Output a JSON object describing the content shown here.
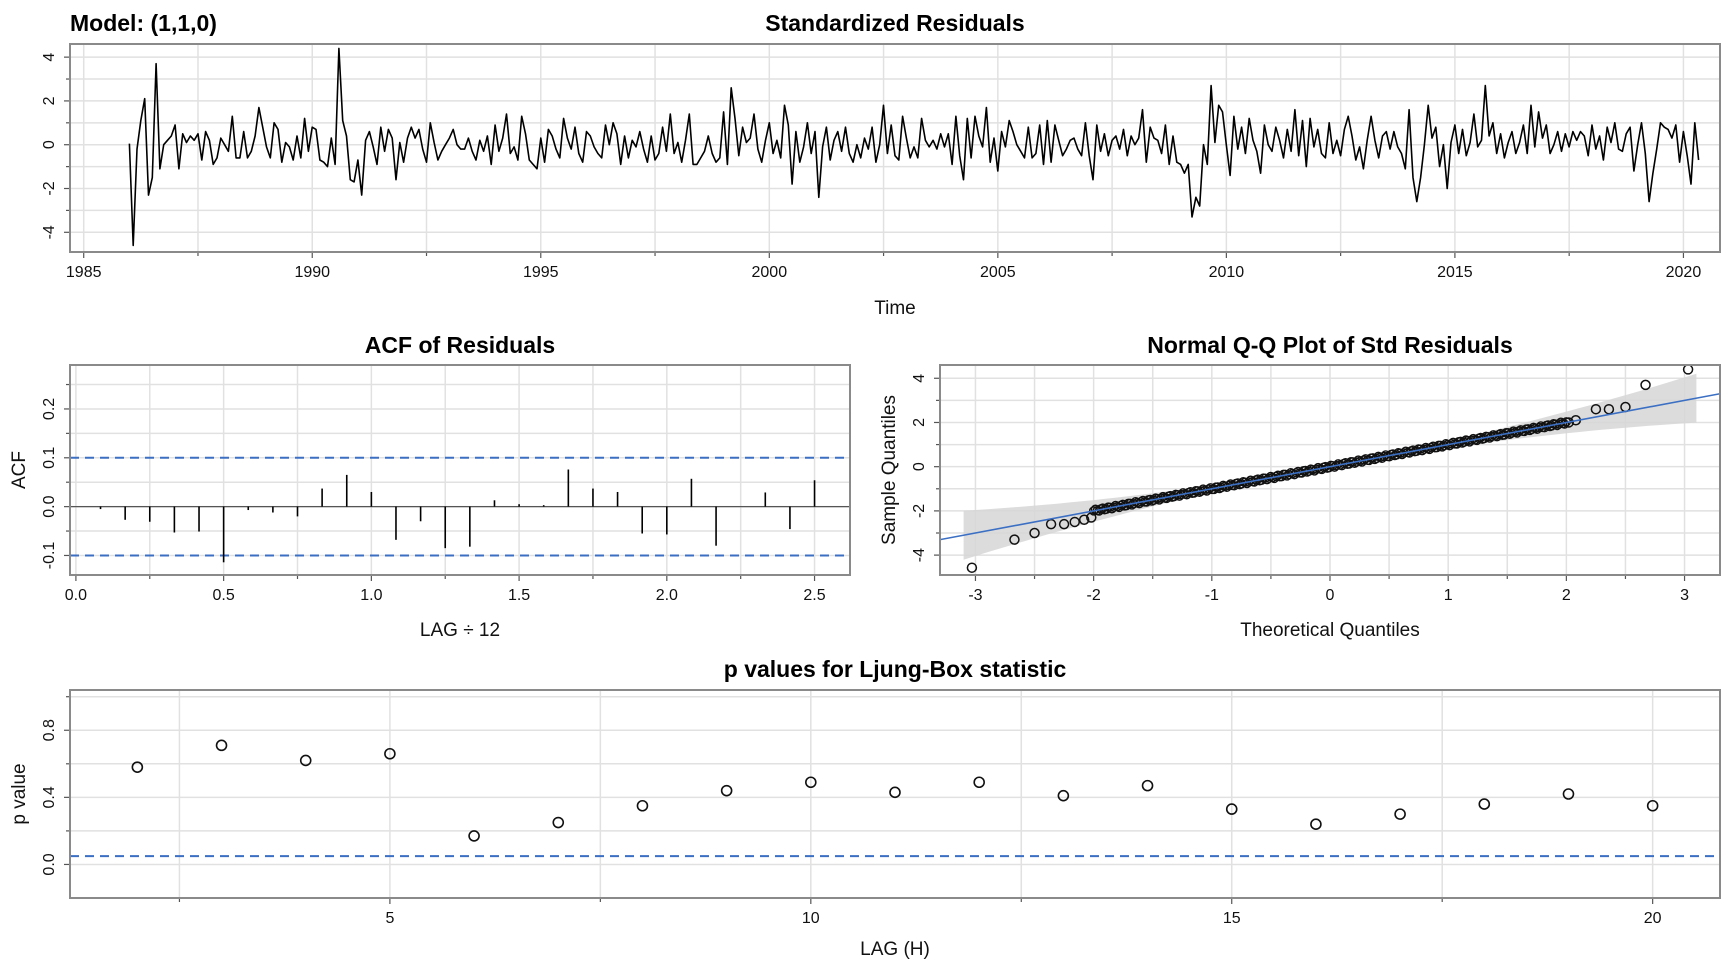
{
  "model_label": "Model: (1,1,0)",
  "chart_data": [
    {
      "type": "line",
      "title": "Standardized Residuals",
      "xlabel": "Time",
      "ylabel": "",
      "xlim": [
        1984.7,
        2020.8
      ],
      "ylim": [
        -4.9,
        4.6
      ],
      "xticks": [
        1985,
        1990,
        1995,
        2000,
        2005,
        2010,
        2015,
        2020
      ],
      "yticks": [
        -4,
        -2,
        0,
        2,
        4
      ],
      "grid": true,
      "x_start": 1986.0,
      "x_step": 0.08333,
      "series": [
        {
          "values": [
            0.05,
            -4.6,
            -0.2,
            1.1,
            2.1,
            -2.3,
            -1.5,
            3.7,
            -1.1,
            0.0,
            0.2,
            0.4,
            0.9,
            -1.1,
            0.5,
            0.1,
            0.4,
            0.2,
            0.5,
            -0.7,
            0.6,
            0.2,
            -0.9,
            -0.6,
            0.3,
            0.0,
            -0.3,
            1.3,
            -0.6,
            -0.6,
            0.6,
            -0.6,
            -0.3,
            0.4,
            1.7,
            0.8,
            -0.1,
            -0.6,
            1.0,
            0.7,
            -0.8,
            0.1,
            -0.1,
            -0.7,
            0.4,
            -0.6,
            1.2,
            -0.3,
            0.8,
            0.7,
            -0.7,
            -0.8,
            -1.0,
            0.3,
            -0.9,
            4.4,
            1.1,
            0.4,
            -1.6,
            -1.7,
            -0.7,
            -2.3,
            0.2,
            0.6,
            -0.1,
            -0.9,
            0.8,
            -0.3,
            0.7,
            0.3,
            -1.6,
            0.1,
            -0.8,
            0.3,
            0.8,
            0.3,
            0.7,
            -0.2,
            -0.8,
            1.0,
            0.1,
            -0.7,
            -0.3,
            0.0,
            0.3,
            0.7,
            0.0,
            -0.2,
            -0.2,
            0.3,
            -0.3,
            -0.7,
            0.2,
            -0.3,
            0.4,
            -0.9,
            0.9,
            -0.3,
            0.3,
            1.4,
            -0.4,
            -0.1,
            -0.7,
            1.3,
            0.5,
            -0.7,
            -0.9,
            -1.1,
            0.3,
            -0.8,
            0.7,
            0.4,
            -0.2,
            -0.6,
            1.2,
            0.3,
            -0.2,
            0.8,
            -0.4,
            -0.8,
            0.6,
            0.4,
            -0.1,
            -0.4,
            -0.6,
            0.9,
            0.0,
            1.0,
            0.5,
            -0.9,
            0.4,
            -0.6,
            0.2,
            -0.1,
            0.6,
            -0.2,
            -0.8,
            0.4,
            -0.7,
            -0.4,
            0.8,
            -0.3,
            1.4,
            -0.4,
            0.1,
            -0.8,
            0.2,
            1.4,
            -0.9,
            -0.9,
            -0.6,
            -0.3,
            0.4,
            -0.4,
            -0.8,
            -0.6,
            1.5,
            -0.9,
            2.6,
            1.2,
            -0.5,
            0.8,
            0.1,
            0.3,
            1.4,
            -0.2,
            -0.8,
            0.2,
            1.0,
            -0.4,
            0.2,
            -0.6,
            1.8,
            0.9,
            -1.8,
            0.6,
            -0.8,
            -0.1,
            1.0,
            -0.4,
            0.6,
            -2.4,
            -0.1,
            0.8,
            -0.7,
            0.2,
            0.6,
            -0.3,
            0.8,
            -0.4,
            -0.8,
            0.0,
            -0.6,
            0.3,
            -0.2,
            0.8,
            -0.8,
            0.0,
            1.8,
            -0.4,
            0.9,
            -0.5,
            -0.7,
            1.3,
            0.3,
            -0.6,
            -0.1,
            -0.6,
            1.2,
            0.2,
            -0.1,
            0.2,
            -0.2,
            0.5,
            -0.1,
            0.5,
            -0.9,
            1.3,
            -0.5,
            -1.6,
            1.2,
            -0.6,
            1.3,
            0.4,
            -0.1,
            1.7,
            -0.8,
            0.3,
            -1.2,
            0.6,
            -0.1,
            1.1,
            0.6,
            0.0,
            -0.3,
            -0.6,
            0.8,
            -0.6,
            -0.4,
            0.9,
            -0.9,
            1.1,
            -0.8,
            0.9,
            0.2,
            -0.5,
            -0.2,
            0.2,
            0.3,
            -0.2,
            -0.5,
            1.0,
            -0.5,
            -1.6,
            0.9,
            -0.3,
            0.5,
            -0.5,
            0.2,
            0.4,
            -0.2,
            0.7,
            -0.5,
            0.4,
            0.0,
            0.3,
            1.6,
            -0.8,
            0.8,
            0.3,
            0.2,
            -0.4,
            0.9,
            -0.9,
            0.4,
            -0.8,
            -0.9,
            -1.3,
            -0.9,
            -3.3,
            -2.4,
            -2.8,
            0.0,
            -0.9,
            2.7,
            0.1,
            1.8,
            1.5,
            0.0,
            -1.4,
            1.3,
            -0.2,
            0.8,
            -0.4,
            1.2,
            0.2,
            -0.3,
            -1.3,
            0.9,
            0.0,
            -0.3,
            0.8,
            0.2,
            -0.6,
            0.7,
            -0.3,
            1.6,
            -0.5,
            1.1,
            -1.0,
            1.2,
            -0.1,
            0.7,
            -0.4,
            -0.6,
            1.0,
            -0.4,
            0.2,
            -0.5,
            0.7,
            1.3,
            0.4,
            -0.7,
            -0.1,
            -1.1,
            0.2,
            1.3,
            0.2,
            -0.6,
            0.4,
            0.6,
            -0.2,
            0.6,
            -0.1,
            -0.4,
            -1.1,
            1.6,
            -1.5,
            -2.6,
            -1.5,
            0.0,
            1.8,
            0.3,
            0.8,
            -1.0,
            0.0,
            -2.0,
            0.1,
            0.9,
            -0.4,
            0.7,
            -0.5,
            0.1,
            1.4,
            -0.1,
            0.2,
            2.7,
            0.4,
            1.0,
            -0.4,
            0.5,
            -0.6,
            0.1,
            0.6,
            -0.4,
            0.1,
            0.9,
            -0.4,
            1.8,
            -0.1,
            1.5,
            0.3,
            0.9,
            -0.4,
            0.0,
            0.6,
            -0.3,
            0.5,
            -0.1,
            0.6,
            0.2,
            0.6,
            0.4,
            -0.5,
            0.9,
            -0.2,
            0.4,
            -0.7,
            0.8,
            0.1,
            1.0,
            -0.2,
            -0.3,
            0.5,
            0.8,
            -1.2,
            0.0,
            1.0,
            -0.4,
            -2.6,
            -1.3,
            -0.2,
            1.0,
            0.8,
            0.7,
            0.3,
            0.9,
            -0.8,
            0.6,
            -0.5,
            -1.8,
            1.0,
            -0.7
          ]
        }
      ]
    },
    {
      "type": "bar",
      "title": "ACF of Residuals",
      "xlabel": "LAG ÷ 12",
      "ylabel": "ACF",
      "xlim": [
        -0.02,
        2.62
      ],
      "ylim": [
        -0.14,
        0.29
      ],
      "xticks": [
        "0.0",
        "0.5",
        "1.0",
        "1.5",
        "2.0",
        "2.5"
      ],
      "yticks": [
        "-0.1",
        "0.0",
        "0.1",
        "0.2"
      ],
      "confidence_bounds": [
        -0.1,
        0.1
      ],
      "grid": true,
      "lags": [
        0.0833,
        0.1667,
        0.25,
        0.3333,
        0.4167,
        0.5,
        0.5833,
        0.6667,
        0.75,
        0.8333,
        0.9167,
        1.0,
        1.0833,
        1.1667,
        1.25,
        1.3333,
        1.4167,
        1.5,
        1.5833,
        1.6667,
        1.75,
        1.8333,
        1.9167,
        2.0,
        2.0833,
        2.1667,
        2.25,
        2.3333,
        2.4167,
        2.5
      ],
      "values": [
        -0.005,
        -0.027,
        -0.031,
        -0.053,
        -0.051,
        -0.114,
        -0.007,
        -0.012,
        -0.02,
        0.037,
        0.065,
        0.03,
        -0.068,
        -0.03,
        -0.085,
        -0.082,
        0.013,
        0.005,
        0.003,
        0.076,
        0.037,
        0.03,
        -0.055,
        -0.057,
        0.057,
        -0.08,
        0.0,
        0.029,
        -0.046,
        0.054
      ]
    },
    {
      "type": "scatter",
      "title": "Normal Q-Q Plot of Std Residuals",
      "xlabel": "Theoretical Quantiles",
      "ylabel": "Sample Quantiles",
      "xlim": [
        -3.3,
        3.3
      ],
      "ylim": [
        -4.9,
        4.6
      ],
      "xticks": [
        -3,
        -2,
        -1,
        0,
        1,
        2,
        3
      ],
      "yticks": [
        -4,
        -2,
        0,
        2,
        4
      ],
      "grid": true,
      "reference_line": {
        "intercept": 0.0,
        "slope": 1.0
      },
      "tail_points": [
        {
          "x": -3.03,
          "y": -4.57
        },
        {
          "x": -2.67,
          "y": -3.3
        },
        {
          "x": -2.5,
          "y": -3.0
        },
        {
          "x": -2.36,
          "y": -2.6
        },
        {
          "x": -2.25,
          "y": -2.6
        },
        {
          "x": -2.16,
          "y": -2.5
        },
        {
          "x": -2.08,
          "y": -2.4
        },
        {
          "x": -2.02,
          "y": -2.3
        },
        {
          "x": 2.02,
          "y": 2.0
        },
        {
          "x": 2.08,
          "y": 2.1
        },
        {
          "x": 2.25,
          "y": 2.6
        },
        {
          "x": 2.36,
          "y": 2.6
        },
        {
          "x": 2.5,
          "y": 2.7
        },
        {
          "x": 2.67,
          "y": 3.7
        },
        {
          "x": 3.03,
          "y": 4.4
        }
      ]
    },
    {
      "type": "scatter",
      "title": "p values for Ljung-Box statistic",
      "xlabel": "LAG (H)",
      "ylabel": "p value",
      "xlim": [
        1.2,
        20.8
      ],
      "ylim": [
        -0.2,
        1.04
      ],
      "xticks": [
        5,
        10,
        15,
        20
      ],
      "yticks": [
        "0.0",
        "0.4",
        "0.8"
      ],
      "threshold": 0.05,
      "grid": true,
      "x": [
        2,
        3,
        4,
        5,
        6,
        7,
        8,
        9,
        10,
        11,
        12,
        13,
        14,
        15,
        16,
        17,
        18,
        19,
        20
      ],
      "values": [
        0.58,
        0.71,
        0.62,
        0.66,
        0.17,
        0.25,
        0.35,
        0.44,
        0.49,
        0.43,
        0.49,
        0.41,
        0.47,
        0.33,
        0.24,
        0.3,
        0.36,
        0.42,
        0.35
      ]
    }
  ],
  "colors": {
    "line": "#000000",
    "reference": "#3b6fc4",
    "bound": "#3b6fc4",
    "band": "#d6d6d6",
    "grid": "#e1e1e1",
    "frame": "#8a8a8a"
  }
}
